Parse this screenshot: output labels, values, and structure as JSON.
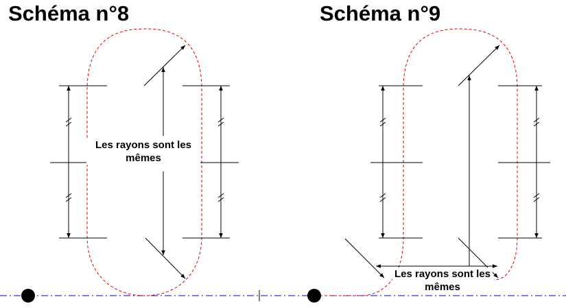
{
  "diagram8": {
    "title": "Schéma n°8",
    "note": "Les rayons sont les mêmes"
  },
  "diagram9": {
    "title": "Schéma n°9",
    "note": "Les rayons sont les mêmes"
  },
  "colors": {
    "track": "#dd0000",
    "baseline": "#0000cc",
    "ink": "#000000"
  }
}
